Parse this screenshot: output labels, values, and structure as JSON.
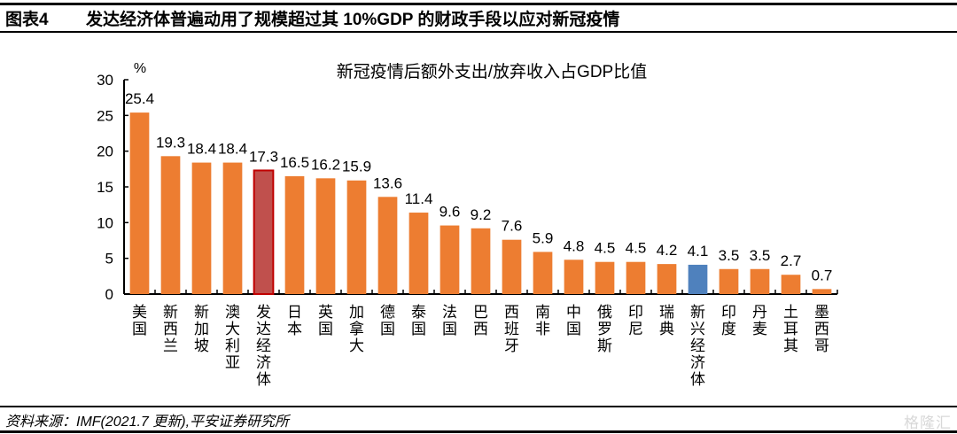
{
  "header": {
    "figure_number": "图表4",
    "figure_title": "发达经济体普遍动用了规模超过其 10%GDP 的财政手段以应对新冠疫情"
  },
  "footer": {
    "source": "资料来源：IMF(2021.7 更新),平安证券研究所",
    "watermark": "格隆汇"
  },
  "colors": {
    "default_bar": "#ED7D31",
    "highlight_developed": "#C0504D",
    "highlight_developed_border": "#C00000",
    "highlight_emerging": "#4F81BD"
  },
  "chart_data": {
    "type": "bar",
    "title": "新冠疫情后额外支出/放弃收入占GDP比值",
    "xlabel": "",
    "ylabel": "%",
    "ylim": [
      0,
      30
    ],
    "yticks": [
      0,
      5,
      10,
      15,
      20,
      25,
      30
    ],
    "grid": false,
    "legend": "none",
    "categories": [
      "美国",
      "新西兰",
      "新加坡",
      "澳大利亚",
      "发达经济体",
      "日本",
      "英国",
      "加拿大",
      "德国",
      "泰国",
      "法国",
      "巴西",
      "西班牙",
      "南非",
      "中国",
      "俄罗斯",
      "印尼",
      "瑞典",
      "新兴经济体",
      "印度",
      "丹麦",
      "土耳其",
      "墨西哥"
    ],
    "values": [
      25.4,
      19.3,
      18.4,
      18.4,
      17.3,
      16.5,
      16.2,
      15.9,
      13.6,
      11.4,
      9.6,
      9.2,
      7.6,
      5.9,
      4.8,
      4.5,
      4.5,
      4.2,
      4.1,
      3.5,
      3.5,
      2.7,
      0.7
    ],
    "value_labels": [
      "25.4",
      "19.3",
      "18.4",
      "18.4",
      "17.3",
      "16.5",
      "16.2",
      "15.9",
      "13.6",
      "11.4",
      "9.6",
      "9.2",
      "7.6",
      "5.9",
      "4.8",
      "4.5",
      "4.5",
      "4.2",
      "4.1",
      "3.5",
      "3.5",
      "2.7",
      "0.7"
    ],
    "highlights": {
      "发达经济体": "highlight_developed",
      "新兴经济体": "highlight_emerging"
    }
  }
}
